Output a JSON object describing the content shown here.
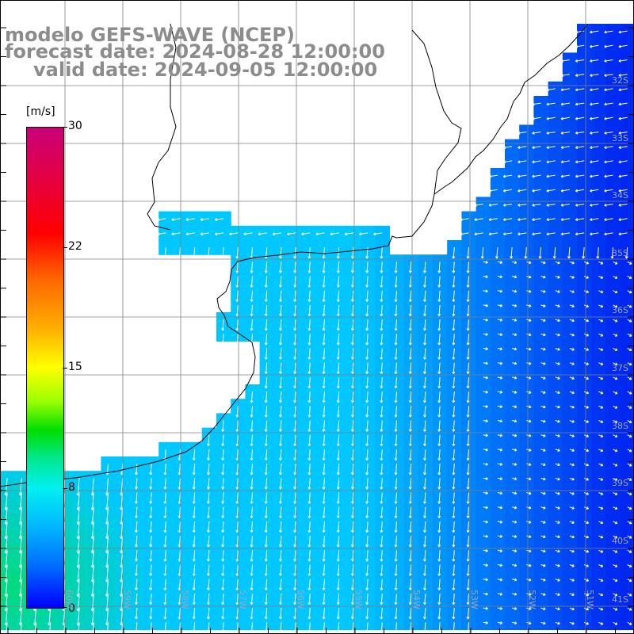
{
  "title": {
    "model": "modelo GEFS-WAVE (NCEP)",
    "forecast": "forecast date: 2024-08-28 12:00:00",
    "valid": "valid date: 2024-09-05 12:00:00"
  },
  "colorbar": {
    "unit": "[m/s]",
    "ticks": [
      "30",
      "22",
      "15",
      "8",
      "0"
    ],
    "tick_values": [
      30,
      22,
      15,
      8,
      0
    ],
    "range": [
      0,
      30
    ]
  },
  "lat_labels": [
    "32S",
    "33S",
    "34S",
    "35S",
    "36S",
    "37S",
    "38S",
    "39S",
    "40S",
    "41S"
  ],
  "lon_labels": [
    "60W",
    "59W",
    "58W",
    "57W",
    "56W",
    "55W",
    "54W",
    "53W",
    "52W",
    "51W"
  ],
  "colors": {
    "land": "#ffffff",
    "coast": "#000000",
    "grid": "#808080",
    "arrow": "#ffffff",
    "title": "#8c8c8c"
  }
}
